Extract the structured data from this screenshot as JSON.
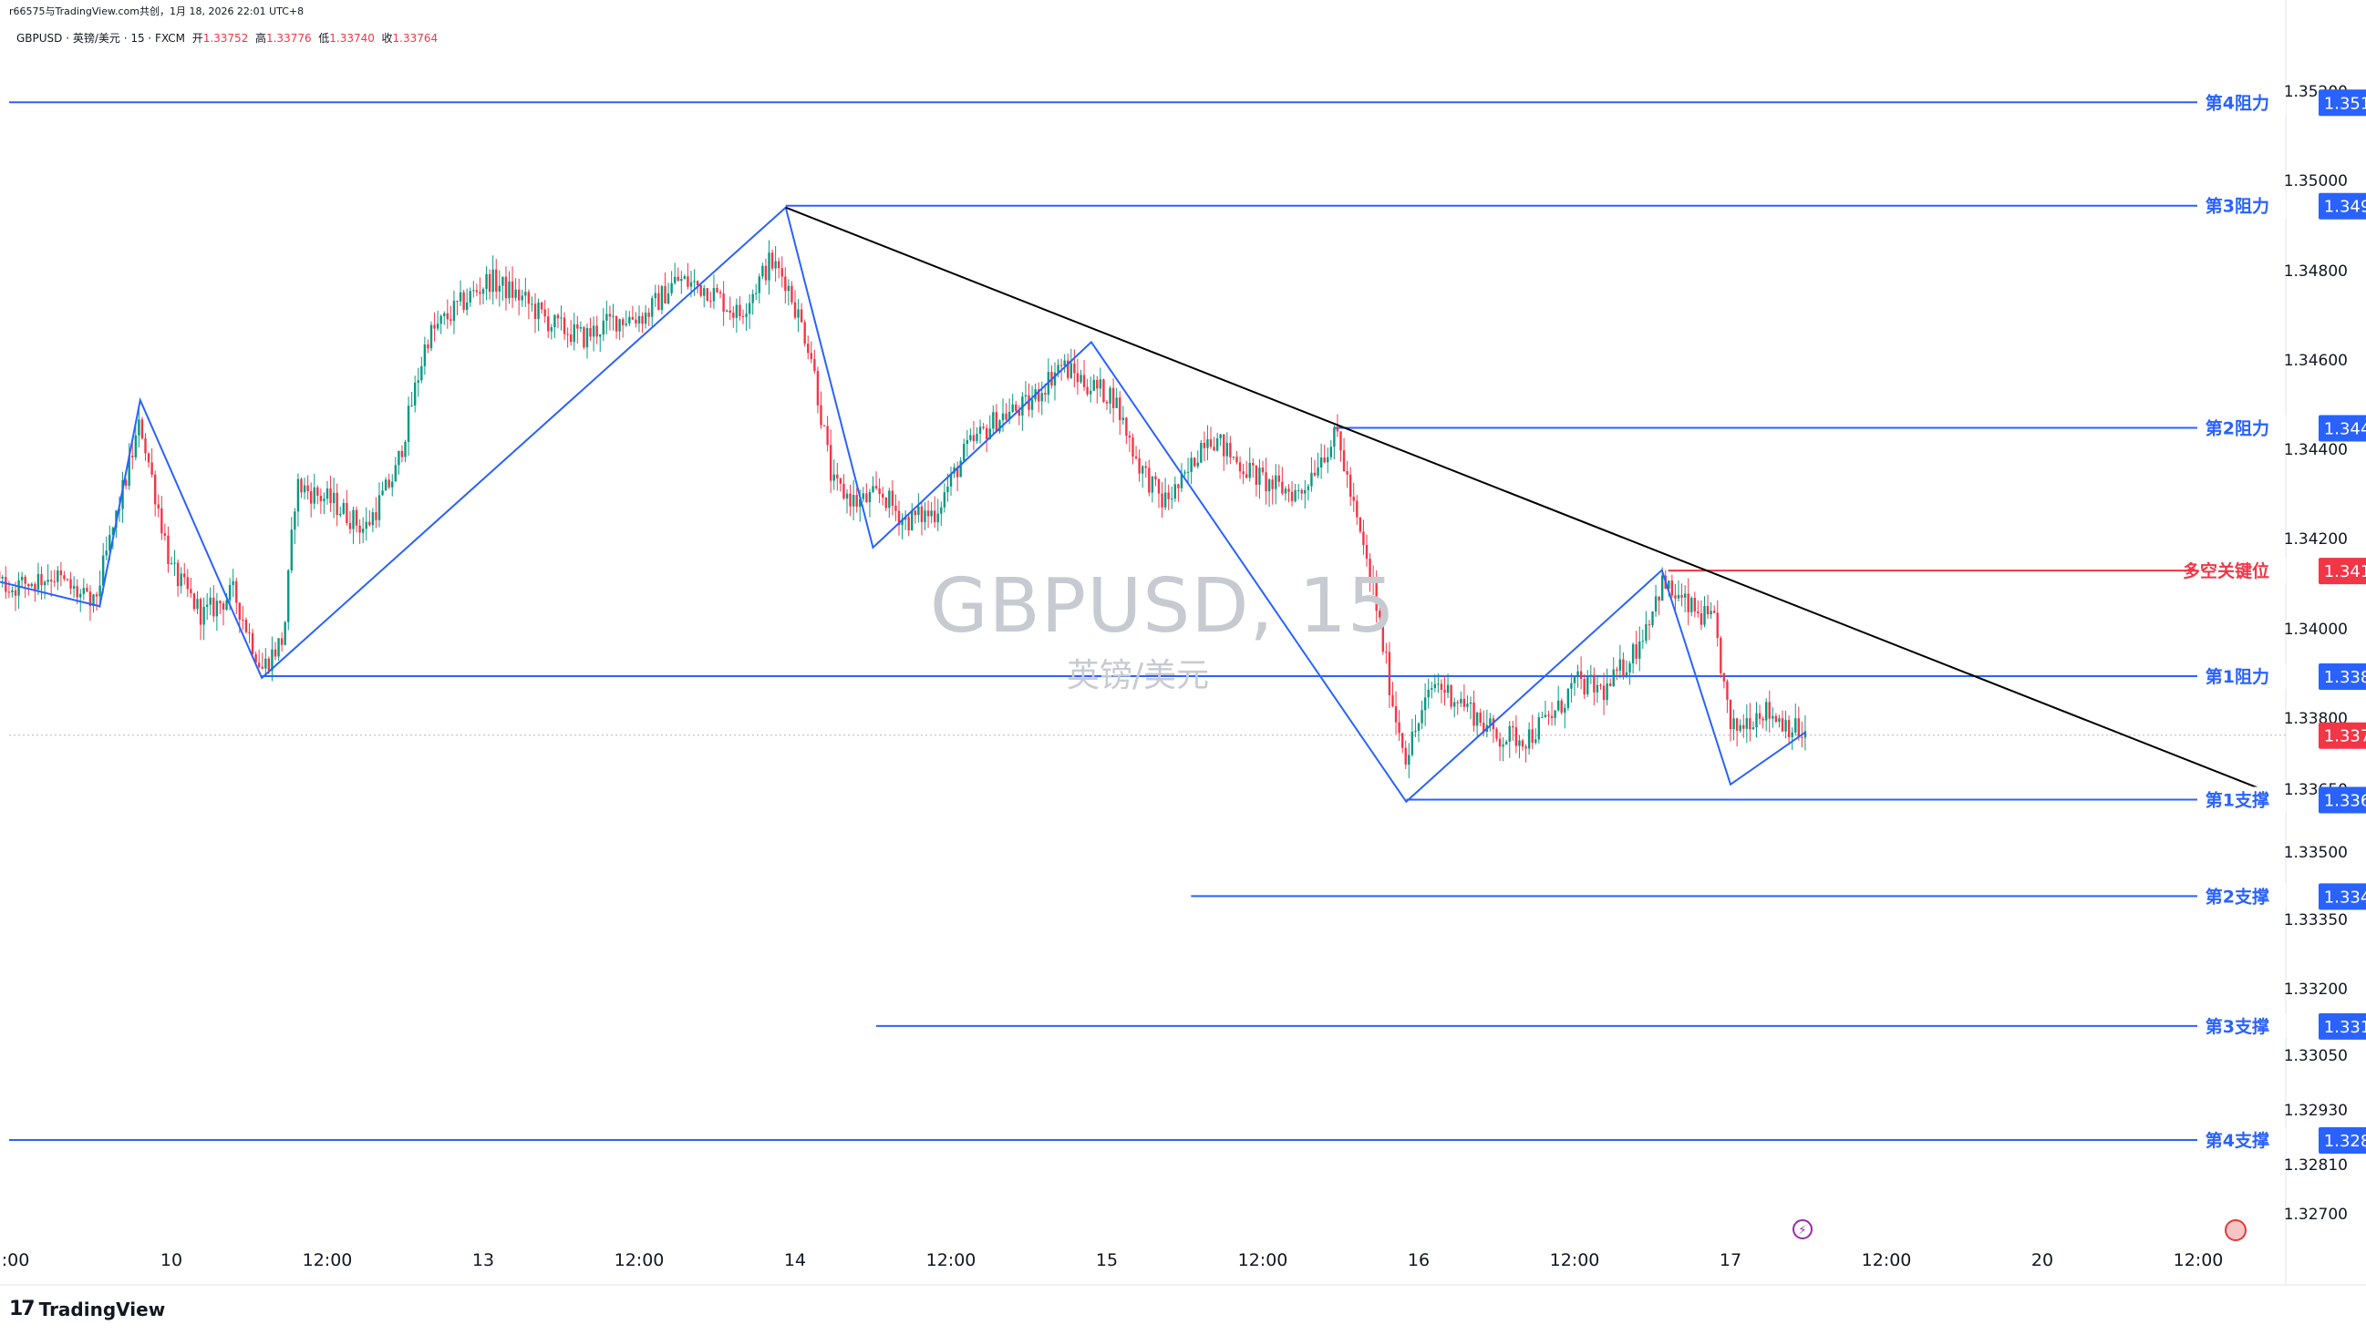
{
  "header": {
    "top_line": "r66575与TradingView.com共创，1月 18, 2026 22:01 UTC+8",
    "symbol_line": "GBPUSD · 英镑/美元 · 15 · FXCM",
    "open_label": "开",
    "open_value": "1.33752",
    "high_label": "高",
    "high_value": "1.33776",
    "low_label": "低",
    "low_value": "1.33740",
    "close_label": "收",
    "close_value": "1.33764"
  },
  "watermark": {
    "main": "GBPUSD, 15",
    "sub": "英镑/美元"
  },
  "brand": {
    "logo": "17",
    "name": "TradingView"
  },
  "icons": {
    "flash": "flash-icon",
    "event": "event-icon"
  },
  "colors": {
    "up": "#089981",
    "down": "#f23645",
    "blue": "#2962ff",
    "red": "#f23645",
    "trend": "#000000",
    "axis_text": "#131722",
    "watermark": "#c8cad2"
  },
  "chart_data": {
    "type": "candlestick",
    "symbol": "GBPUSD",
    "interval": "15",
    "ylim": [
      1.3265,
      1.353
    ],
    "y_ticks": [
      "1.35200",
      "1.35000",
      "1.34800",
      "1.34600",
      "1.34400",
      "1.34200",
      "1.34000",
      "1.33800",
      "1.33650",
      "1.33500",
      "1.33350",
      "1.33200",
      "1.33050",
      "1.32930",
      "1.32810",
      "1.32700"
    ],
    "x_ticks": [
      ":00",
      "10",
      "12:00",
      "13",
      "12:00",
      "14",
      "12:00",
      "15",
      "12:00",
      "16",
      "12:00",
      "17",
      "12:00",
      "20",
      "12:00"
    ],
    "x_tick_days": [
      -0.5,
      0,
      0.5,
      1,
      1.5,
      2,
      2.5,
      3,
      3.5,
      4,
      4.5,
      5,
      5.5,
      6,
      6.5
    ],
    "current_price": "1.33764",
    "levels": [
      {
        "label": "第4阻力",
        "price": "1.35175",
        "color": "#2962ff",
        "start_day": -1.0
      },
      {
        "label": "第3阻力",
        "price": "1.34944",
        "color": "#2962ff",
        "start_day": 1.97
      },
      {
        "label": "第2阻力",
        "price": "1.34448",
        "color": "#2962ff",
        "start_day": 3.73
      },
      {
        "label": "多空关键位",
        "price": "1.34129",
        "color": "#f23645",
        "start_day": 4.8
      },
      {
        "label": "第1阻力",
        "price": "1.33894",
        "color": "#2962ff",
        "start_day": 0.29
      },
      {
        "label": "第1支撑",
        "price": "1.33625",
        "color": "#2962ff",
        "start_day": 3.96
      },
      {
        "label": "第2支撑",
        "price": "1.33402",
        "color": "#2962ff",
        "start_day": 3.27
      },
      {
        "label": "第3支撑",
        "price": "1.33116",
        "color": "#2962ff",
        "start_day": 2.26
      },
      {
        "label": "第4支撑",
        "price": "1.32864",
        "color": "#2962ff",
        "start_day": -1.0
      }
    ],
    "zigzag": [
      {
        "day": -1.0,
        "price": 1.3418
      },
      {
        "day": -0.23,
        "price": 1.3405
      },
      {
        "day": -0.1,
        "price": 1.3451
      },
      {
        "day": 0.29,
        "price": 1.3389
      },
      {
        "day": 1.97,
        "price": 1.3494
      },
      {
        "day": 2.25,
        "price": 1.3418
      },
      {
        "day": 2.95,
        "price": 1.3464
      },
      {
        "day": 3.96,
        "price": 1.3362
      },
      {
        "day": 4.78,
        "price": 1.3413
      },
      {
        "day": 5.0,
        "price": 1.3366
      },
      {
        "day": 5.24,
        "price": 1.3377
      }
    ],
    "trendline": [
      {
        "day": 1.97,
        "price": 1.3494
      },
      {
        "day": 6.77,
        "price": 1.3363
      }
    ],
    "close_path": [
      {
        "day": -1.0,
        "price": 1.3436
      },
      {
        "day": -0.9,
        "price": 1.3432
      },
      {
        "day": -0.78,
        "price": 1.3428
      },
      {
        "day": -0.65,
        "price": 1.3418
      },
      {
        "day": -0.52,
        "price": 1.3409
      },
      {
        "day": -0.38,
        "price": 1.3412
      },
      {
        "day": -0.25,
        "price": 1.3405
      },
      {
        "day": -0.1,
        "price": 1.3446
      },
      {
        "day": 0.0,
        "price": 1.3413
      },
      {
        "day": 0.1,
        "price": 1.3403
      },
      {
        "day": 0.2,
        "price": 1.3408
      },
      {
        "day": 0.29,
        "price": 1.3391
      },
      {
        "day": 0.36,
        "price": 1.3398
      },
      {
        "day": 0.4,
        "price": 1.3432
      },
      {
        "day": 0.52,
        "price": 1.3428
      },
      {
        "day": 0.62,
        "price": 1.3422
      },
      {
        "day": 0.72,
        "price": 1.3435
      },
      {
        "day": 0.82,
        "price": 1.3465
      },
      {
        "day": 0.92,
        "price": 1.3472
      },
      {
        "day": 1.02,
        "price": 1.3478
      },
      {
        "day": 1.12,
        "price": 1.3474
      },
      {
        "day": 1.22,
        "price": 1.3468
      },
      {
        "day": 1.32,
        "price": 1.3465
      },
      {
        "day": 1.42,
        "price": 1.3469
      },
      {
        "day": 1.52,
        "price": 1.347
      },
      {
        "day": 1.62,
        "price": 1.3478
      },
      {
        "day": 1.72,
        "price": 1.3476
      },
      {
        "day": 1.82,
        "price": 1.347
      },
      {
        "day": 1.92,
        "price": 1.3482
      },
      {
        "day": 1.97,
        "price": 1.3478
      },
      {
        "day": 2.05,
        "price": 1.3462
      },
      {
        "day": 2.12,
        "price": 1.3432
      },
      {
        "day": 2.2,
        "price": 1.3428
      },
      {
        "day": 2.28,
        "price": 1.343
      },
      {
        "day": 2.35,
        "price": 1.3424
      },
      {
        "day": 2.45,
        "price": 1.3426
      },
      {
        "day": 2.55,
        "price": 1.344
      },
      {
        "day": 2.65,
        "price": 1.3447
      },
      {
        "day": 2.75,
        "price": 1.345
      },
      {
        "day": 2.85,
        "price": 1.3459
      },
      {
        "day": 2.95,
        "price": 1.3454
      },
      {
        "day": 3.02,
        "price": 1.3452
      },
      {
        "day": 3.1,
        "price": 1.3437
      },
      {
        "day": 3.18,
        "price": 1.3428
      },
      {
        "day": 3.25,
        "price": 1.3433
      },
      {
        "day": 3.32,
        "price": 1.3444
      },
      {
        "day": 3.42,
        "price": 1.3437
      },
      {
        "day": 3.52,
        "price": 1.3432
      },
      {
        "day": 3.62,
        "price": 1.343
      },
      {
        "day": 3.68,
        "price": 1.3438
      },
      {
        "day": 3.74,
        "price": 1.3443
      },
      {
        "day": 3.8,
        "price": 1.3424
      },
      {
        "day": 3.86,
        "price": 1.3407
      },
      {
        "day": 3.92,
        "price": 1.3382
      },
      {
        "day": 3.96,
        "price": 1.3372
      },
      {
        "day": 4.05,
        "price": 1.3388
      },
      {
        "day": 4.15,
        "price": 1.3383
      },
      {
        "day": 4.25,
        "price": 1.3376
      },
      {
        "day": 4.35,
        "price": 1.3376
      },
      {
        "day": 4.45,
        "price": 1.3382
      },
      {
        "day": 4.5,
        "price": 1.3388
      },
      {
        "day": 4.6,
        "price": 1.3386
      },
      {
        "day": 4.7,
        "price": 1.3396
      },
      {
        "day": 4.78,
        "price": 1.341
      },
      {
        "day": 4.86,
        "price": 1.3405
      },
      {
        "day": 4.95,
        "price": 1.3401
      },
      {
        "day": 5.0,
        "price": 1.3377
      },
      {
        "day": 5.1,
        "price": 1.3382
      },
      {
        "day": 5.18,
        "price": 1.3379
      },
      {
        "day": 5.24,
        "price": 1.3376
      }
    ]
  }
}
